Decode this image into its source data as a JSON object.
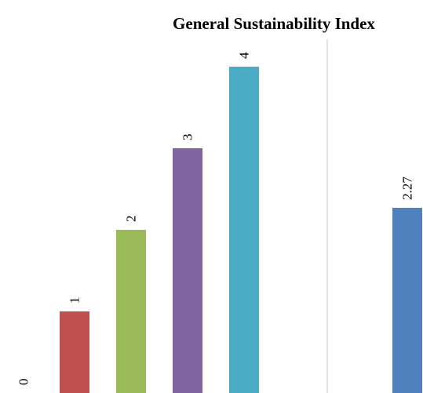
{
  "chart_data": {
    "type": "bar",
    "title": "General Sustainability Index",
    "xlabel": "",
    "ylabel": "",
    "ylim": [
      0,
      4.3
    ],
    "grid": false,
    "legend": "none",
    "categories": [
      "",
      "",
      "",
      "",
      "",
      ""
    ],
    "values": [
      0,
      1,
      2,
      3,
      4,
      2.27
    ],
    "data_labels": [
      "0",
      "1",
      "2",
      "3",
      "4",
      "2.27"
    ],
    "colors": [
      "#4f81bd",
      "#c0504d",
      "#9bbb59",
      "#8064a2",
      "#4bacc6",
      "#4f81bd"
    ],
    "separator_after_index": 4,
    "separator_color": "#d9d9d9"
  }
}
